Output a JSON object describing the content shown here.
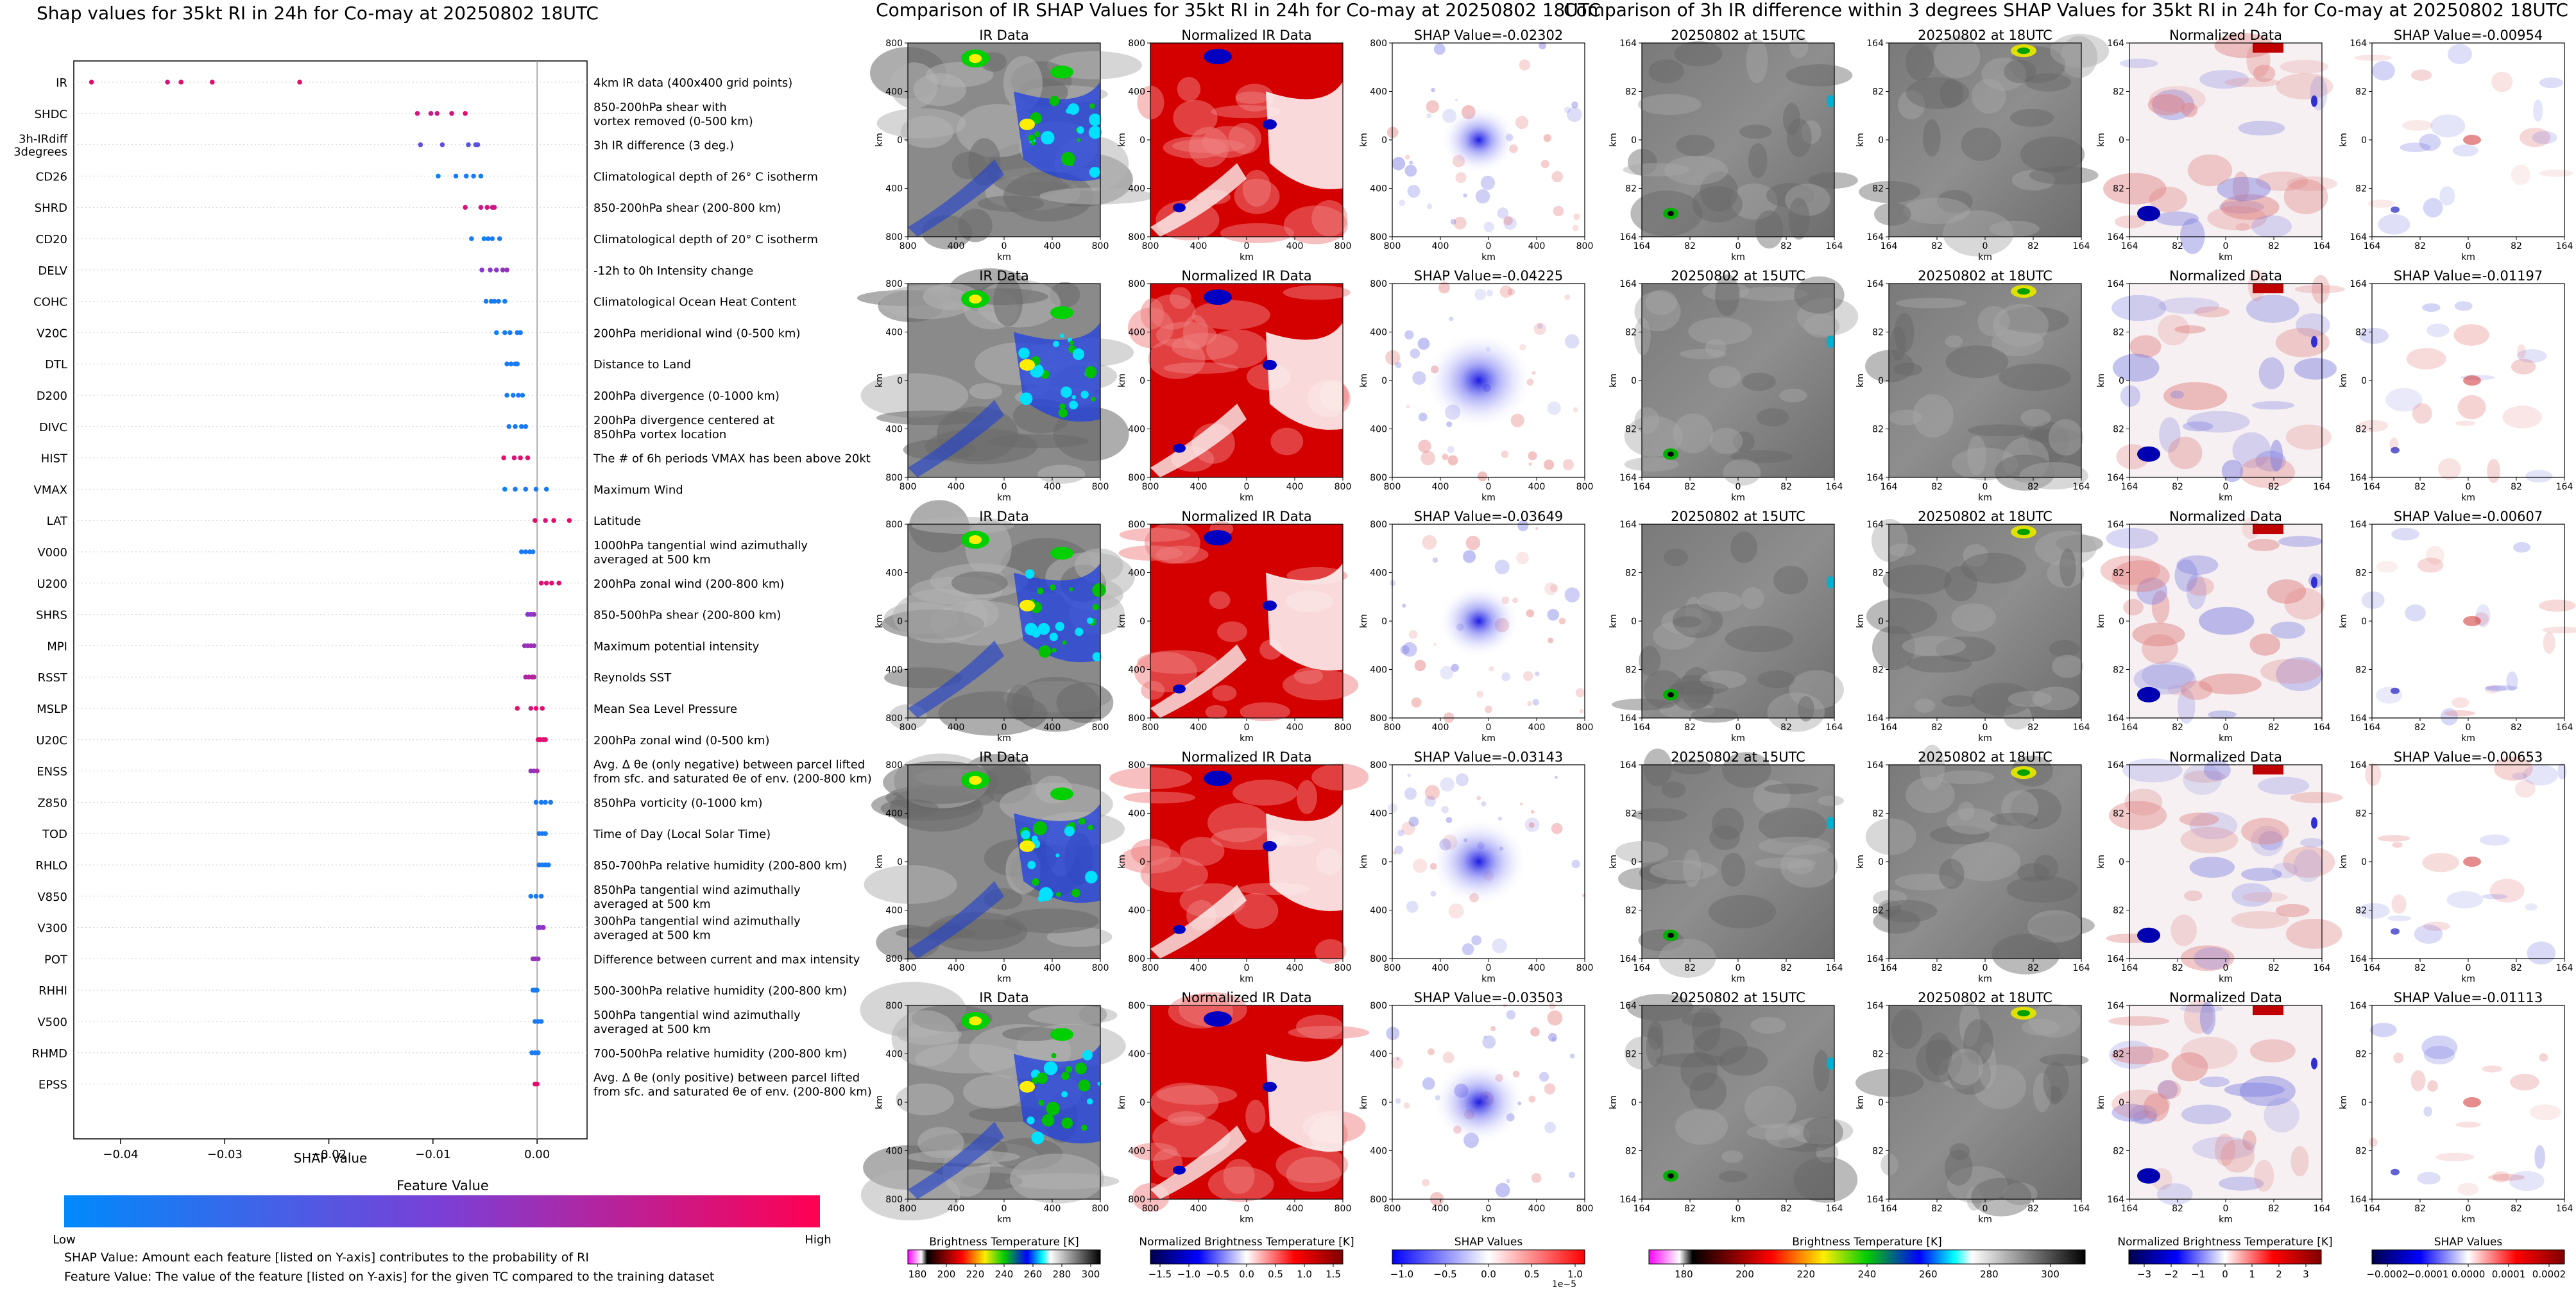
{
  "beeswarm": {
    "title": "Shap values for 35kt RI in 24h for Co-may at 20250802 18UTC",
    "xlabel": "SHAP Value",
    "xticks": [
      -0.04,
      -0.03,
      -0.02,
      -0.01,
      0.0
    ],
    "xtick_labels": [
      "−0.04",
      "−0.03",
      "−0.02",
      "−0.01",
      "0.00"
    ],
    "xlim": [
      -0.0445,
      0.0048
    ],
    "colorbar_title": "Feature Value",
    "colorbar_low": "Low",
    "colorbar_high": "High",
    "note_line1": "SHAP Value: Amount each feature [listed on Y-axis] contributes to the probability of RI",
    "note_line2": "Feature Value: The value of the feature [listed on Y-axis] for the given TC compared to the training dataset",
    "features": [
      {
        "code": "IR",
        "desc": [
          "4km IR data (400x400 grid points)"
        ],
        "points": [
          [
            -0.0428,
            0.9
          ],
          [
            -0.0355,
            0.85
          ],
          [
            -0.0342,
            0.9
          ],
          [
            -0.0312,
            0.9
          ],
          [
            -0.0228,
            0.9
          ]
        ]
      },
      {
        "code": "SHDC",
        "desc": [
          "850-200hPa shear with",
          "vortex removed (0-500 km)"
        ],
        "points": [
          [
            -0.0115,
            0.85
          ],
          [
            -0.0102,
            0.8
          ],
          [
            -0.0096,
            0.8
          ],
          [
            -0.0082,
            0.85
          ],
          [
            -0.0069,
            0.9
          ]
        ]
      },
      {
        "code": "3h-IRdiff\n3degrees",
        "desc": [
          "3h IR difference (3 deg.)"
        ],
        "points": [
          [
            -0.0112,
            0.4
          ],
          [
            -0.0091,
            0.4
          ],
          [
            -0.0066,
            0.35
          ],
          [
            -0.0059,
            0.35
          ],
          [
            -0.0057,
            0.4
          ]
        ]
      },
      {
        "code": "CD26",
        "desc": [
          "Climatological depth of 26° C isotherm"
        ],
        "points": [
          [
            -0.0095,
            0.05
          ],
          [
            -0.0078,
            0.1
          ],
          [
            -0.0068,
            0.1
          ],
          [
            -0.0061,
            0.1
          ],
          [
            -0.0054,
            0.1
          ]
        ]
      },
      {
        "code": "SHRD",
        "desc": [
          "850-200hPa shear (200-800 km)"
        ],
        "points": [
          [
            -0.0069,
            0.85
          ],
          [
            -0.0054,
            0.8
          ],
          [
            -0.0048,
            0.85
          ],
          [
            -0.0043,
            0.8
          ],
          [
            -0.0041,
            0.8
          ]
        ]
      },
      {
        "code": "CD20",
        "desc": [
          "Climatological depth of 20° C isotherm"
        ],
        "points": [
          [
            -0.0063,
            0.1
          ],
          [
            -0.0051,
            0.05
          ],
          [
            -0.0047,
            0.1
          ],
          [
            -0.0043,
            0.1
          ],
          [
            -0.0036,
            0.1
          ]
        ]
      },
      {
        "code": "DELV",
        "desc": [
          "-12h to 0h Intensity change"
        ],
        "points": [
          [
            -0.0053,
            0.55
          ],
          [
            -0.0045,
            0.55
          ],
          [
            -0.0039,
            0.55
          ],
          [
            -0.0033,
            0.6
          ],
          [
            -0.0029,
            0.6
          ]
        ]
      },
      {
        "code": "COHC",
        "desc": [
          "Climatological Ocean Heat Content"
        ],
        "points": [
          [
            -0.0049,
            0.1
          ],
          [
            -0.0044,
            0.1
          ],
          [
            -0.0041,
            0.1
          ],
          [
            -0.0037,
            0.1
          ],
          [
            -0.0031,
            0.1
          ]
        ]
      },
      {
        "code": "V20C",
        "desc": [
          "200hPa meridional wind (0-500 km)"
        ],
        "points": [
          [
            -0.0039,
            0.05
          ],
          [
            -0.0031,
            0.1
          ],
          [
            -0.0026,
            0.1
          ],
          [
            -0.0019,
            0.1
          ],
          [
            -0.0016,
            0.1
          ]
        ]
      },
      {
        "code": "DTL",
        "desc": [
          "Distance to Land"
        ],
        "points": [
          [
            -0.0029,
            0.1
          ],
          [
            -0.0025,
            0.1
          ],
          [
            -0.0021,
            0.1
          ],
          [
            -0.0019,
            0.1
          ]
        ]
      },
      {
        "code": "D200",
        "desc": [
          "200hPa divergence (0-1000 km)"
        ],
        "points": [
          [
            -0.0029,
            0.1
          ],
          [
            -0.0023,
            0.1
          ],
          [
            -0.0018,
            0.1
          ],
          [
            -0.0014,
            0.1
          ]
        ]
      },
      {
        "code": "DIVC",
        "desc": [
          "200hPa divergence centered at",
          "850hPa vortex location"
        ],
        "points": [
          [
            -0.0027,
            0.1
          ],
          [
            -0.0021,
            0.1
          ],
          [
            -0.0015,
            0.1
          ],
          [
            -0.0011,
            0.1
          ]
        ]
      },
      {
        "code": "HIST",
        "desc": [
          "The # of 6h periods VMAX has been above 20kt"
        ],
        "points": [
          [
            -0.0032,
            0.9
          ],
          [
            -0.0022,
            0.85
          ],
          [
            -0.0016,
            0.9
          ],
          [
            -0.0009,
            0.9
          ]
        ]
      },
      {
        "code": "VMAX",
        "desc": [
          "Maximum Wind"
        ],
        "points": [
          [
            -0.0031,
            0.05
          ],
          [
            -0.0021,
            0.1
          ],
          [
            -0.0011,
            0.1
          ],
          [
            -0.0001,
            0.1
          ],
          [
            0.0009,
            0.1
          ]
        ]
      },
      {
        "code": "LAT",
        "desc": [
          "Latitude"
        ],
        "points": [
          [
            -0.0002,
            0.9
          ],
          [
            0.0008,
            0.85
          ],
          [
            0.0016,
            0.9
          ],
          [
            0.0031,
            0.9
          ]
        ]
      },
      {
        "code": "V000",
        "desc": [
          "1000hPa tangential wind azimuthally",
          "averaged at 500 km"
        ],
        "points": [
          [
            -0.0015,
            0.1
          ],
          [
            -0.0011,
            0.1
          ],
          [
            -0.0007,
            0.1
          ],
          [
            -0.0004,
            0.1
          ]
        ]
      },
      {
        "code": "U200",
        "desc": [
          "200hPa zonal wind (200-800 km)"
        ],
        "points": [
          [
            0.0004,
            0.9
          ],
          [
            0.0009,
            0.85
          ],
          [
            0.0014,
            0.9
          ],
          [
            0.0021,
            0.9
          ]
        ]
      },
      {
        "code": "SHRS",
        "desc": [
          "850-500hPa shear (200-800 km)"
        ],
        "points": [
          [
            -0.0009,
            0.55
          ],
          [
            -0.0006,
            0.55
          ],
          [
            -0.0003,
            0.6
          ]
        ]
      },
      {
        "code": "MPI",
        "desc": [
          "Maximum potential intensity"
        ],
        "points": [
          [
            -0.0012,
            0.6
          ],
          [
            -0.0009,
            0.6
          ],
          [
            -0.0006,
            0.65
          ],
          [
            -0.0003,
            0.6
          ]
        ]
      },
      {
        "code": "RSST",
        "desc": [
          "Reynolds SST"
        ],
        "points": [
          [
            -0.0011,
            0.7
          ],
          [
            -0.0008,
            0.7
          ],
          [
            -0.0005,
            0.75
          ],
          [
            -0.0003,
            0.7
          ]
        ]
      },
      {
        "code": "MSLP",
        "desc": [
          "Mean Sea Level Pressure"
        ],
        "points": [
          [
            -0.0019,
            0.9
          ],
          [
            -0.0006,
            0.85
          ],
          [
            -0.0001,
            0.9
          ],
          [
            0.0005,
            0.9
          ]
        ]
      },
      {
        "code": "U20C",
        "desc": [
          "200hPa zonal wind (0-500 km)"
        ],
        "points": [
          [
            0.0001,
            0.9
          ],
          [
            0.0003,
            0.9
          ],
          [
            0.0006,
            0.85
          ],
          [
            0.0008,
            0.9
          ]
        ]
      },
      {
        "code": "ENSS",
        "desc": [
          "Avg. Δ θe (only negative) between parcel lifted",
          "from sfc. and saturated θe of env. (200-800 km)"
        ],
        "points": [
          [
            -0.0006,
            0.6
          ],
          [
            -0.0003,
            0.6
          ],
          [
            0.0,
            0.65
          ]
        ]
      },
      {
        "code": "Z850",
        "desc": [
          "850hPa vorticity (0-1000 km)"
        ],
        "points": [
          [
            -0.0001,
            0.1
          ],
          [
            0.0004,
            0.1
          ],
          [
            0.0008,
            0.1
          ],
          [
            0.0013,
            0.1
          ]
        ]
      },
      {
        "code": "TOD",
        "desc": [
          "Time of Day (Local Solar Time)"
        ],
        "points": [
          [
            0.0002,
            0.1
          ],
          [
            0.0005,
            0.1
          ],
          [
            0.0008,
            0.1
          ]
        ]
      },
      {
        "code": "RHLO",
        "desc": [
          "850-700hPa relative humidity (200-800 km)"
        ],
        "points": [
          [
            0.0002,
            0.1
          ],
          [
            0.0005,
            0.1
          ],
          [
            0.0008,
            0.1
          ],
          [
            0.0011,
            0.1
          ]
        ]
      },
      {
        "code": "V850",
        "desc": [
          "850hPa tangential wind azimuthally",
          "averaged at 500 km"
        ],
        "points": [
          [
            -0.0006,
            0.1
          ],
          [
            -0.0001,
            0.1
          ],
          [
            0.0004,
            0.1
          ]
        ]
      },
      {
        "code": "V300",
        "desc": [
          "300hPa tangential wind azimuthally",
          "averaged at 500 km"
        ],
        "points": [
          [
            0.0001,
            0.55
          ],
          [
            0.0003,
            0.55
          ],
          [
            0.0006,
            0.6
          ]
        ]
      },
      {
        "code": "POT",
        "desc": [
          "Difference between current and max intensity"
        ],
        "points": [
          [
            -0.0004,
            0.6
          ],
          [
            -0.0002,
            0.6
          ],
          [
            0.0001,
            0.6
          ]
        ]
      },
      {
        "code": "RHHI",
        "desc": [
          "500-300hPa relative humidity (200-800 km)"
        ],
        "points": [
          [
            -0.0004,
            0.1
          ],
          [
            -0.0002,
            0.1
          ],
          [
            0.0,
            0.1
          ]
        ]
      },
      {
        "code": "V500",
        "desc": [
          "500hPa tangential wind azimuthally",
          "averaged at 500 km"
        ],
        "points": [
          [
            -0.0002,
            0.1
          ],
          [
            0.0001,
            0.1
          ],
          [
            0.0004,
            0.1
          ]
        ]
      },
      {
        "code": "RHMD",
        "desc": [
          "700-500hPa relative humidity (200-800 km)"
        ],
        "points": [
          [
            -0.0005,
            0.1
          ],
          [
            -0.0002,
            0.1
          ],
          [
            0.0001,
            0.1
          ]
        ]
      },
      {
        "code": "EPSS",
        "desc": [
          "Avg. Δ θe (only positive) between parcel lifted",
          "from sfc. and saturated θe of env. (200-800 km)"
        ],
        "points": [
          [
            -0.0002,
            0.9
          ],
          [
            0.0,
            0.9
          ]
        ]
      }
    ]
  },
  "ir_section": {
    "title": "Comparison of IR SHAP Values for 35kt RI in 24h for Co-may at 20250802 18UTC",
    "col_titles": [
      "IR Data",
      "Normalized IR Data"
    ],
    "shap_titles": [
      "SHAP Value=-0.02302",
      "SHAP Value=-0.04225",
      "SHAP Value=-0.03649",
      "SHAP Value=-0.03143",
      "SHAP Value=-0.03503"
    ],
    "axis_label": "km",
    "xtick_labels": [
      "800",
      "400",
      "0",
      "400",
      "800"
    ],
    "ytick_labels": [
      "800",
      "400",
      "0",
      "400",
      "800"
    ],
    "cbar_labels": [
      "Brightness Temperature [K]",
      "Normalized Brightness Temperature [K]",
      "SHAP Values"
    ],
    "cbar1_ticks": [
      "180",
      "200",
      "220",
      "240",
      "260",
      "280",
      "300"
    ],
    "cbar2_ticks": [
      "−1.5",
      "−1.0",
      "−0.5",
      "0.0",
      "0.5",
      "1.0",
      "1.5"
    ],
    "cbar3_ticks": [
      "−1.0",
      "−0.5",
      "0.0",
      "0.5",
      "1.0"
    ],
    "cbar3_exponent": "1e−5"
  },
  "diff_section": {
    "title": "Comparison of 3h IR difference within 3 degrees SHAP Values for 35kt RI in 24h for Co-may at 20250802 18UTC",
    "col_titles": [
      "20250802 at 15UTC",
      "20250802 at 18UTC",
      "Normalized Data"
    ],
    "shap_titles": [
      "SHAP Value=-0.00954",
      "SHAP Value=-0.01197",
      "SHAP Value=-0.00607",
      "SHAP Value=-0.00653",
      "SHAP Value=-0.01113"
    ],
    "axis_label": "km",
    "xtick_labels": [
      "164",
      "82",
      "0",
      "82",
      "164"
    ],
    "ytick_labels": [
      "164",
      "82",
      "0",
      "82",
      "164"
    ],
    "cbar_labels": [
      "Brightness Temperature [K]",
      "Normalized Brightness Temperature [K]",
      "SHAP Values"
    ],
    "cbar1_ticks": [
      "180",
      "200",
      "220",
      "240",
      "260",
      "280",
      "300"
    ],
    "cbar2_ticks": [
      "−3",
      "−2",
      "−1",
      "0",
      "1",
      "2",
      "3"
    ],
    "cbar3_ticks": [
      "−0.0002",
      "−0.0001",
      "0.0000",
      "0.0001",
      "0.0002"
    ]
  },
  "colors": {
    "feature_low": "#008afb",
    "feature_mid": "#7b3fd6",
    "feature_high": "#ff0052",
    "shap_blue": "#1010e0",
    "shap_red": "#e01010",
    "ir_red": "#d40000"
  },
  "chart_data": [
    {
      "type": "scatter",
      "title": "Shap values for 35kt RI in 24h for Co-may at 20250802 18UTC",
      "xlabel": "SHAP Value",
      "ylabel": "",
      "xlim": [
        -0.0445,
        0.0048
      ],
      "categories": [
        "IR",
        "SHDC",
        "3h-IRdiff 3degrees",
        "CD26",
        "SHRD",
        "CD20",
        "DELV",
        "COHC",
        "V20C",
        "DTL",
        "D200",
        "DIVC",
        "HIST",
        "VMAX",
        "LAT",
        "V000",
        "U200",
        "SHRS",
        "MPI",
        "RSST",
        "MSLP",
        "U20C",
        "ENSS",
        "Z850",
        "TOD",
        "RHLO",
        "V850",
        "V300",
        "POT",
        "RHHI",
        "V500",
        "RHMD",
        "EPSS"
      ],
      "legend": "colorbar below: Feature Value Low to High"
    },
    {
      "type": "heatmap",
      "title": "Comparison of IR SHAP Values for 35kt RI in 24h for Co-may at 20250802 18UTC",
      "xlabel": "km",
      "ylabel": "km",
      "xlim": [
        -800,
        800
      ],
      "ylim": [
        -800,
        800
      ],
      "series": [
        {
          "name": "IR Data",
          "values": []
        },
        {
          "name": "Normalized IR Data",
          "values": []
        },
        {
          "name": "SHAP",
          "values": [
            -0.02302,
            -0.04225,
            -0.03649,
            -0.03143,
            -0.03503
          ]
        }
      ]
    },
    {
      "type": "heatmap",
      "title": "Comparison of 3h IR difference within 3 degrees SHAP Values for 35kt RI in 24h for Co-may at 20250802 18UTC",
      "xlabel": "km",
      "ylabel": "km",
      "xlim": [
        -164,
        164
      ],
      "ylim": [
        -164,
        164
      ],
      "series": [
        {
          "name": "20250802 at 15UTC",
          "values": []
        },
        {
          "name": "20250802 at 18UTC",
          "values": []
        },
        {
          "name": "Normalized Data",
          "values": []
        },
        {
          "name": "SHAP",
          "values": [
            -0.00954,
            -0.01197,
            -0.00607,
            -0.00653,
            -0.01113
          ]
        }
      ]
    }
  ]
}
